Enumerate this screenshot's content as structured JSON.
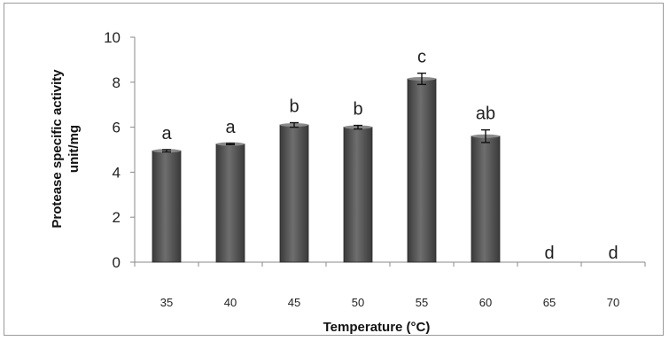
{
  "chart_data": {
    "type": "bar",
    "categories": [
      "35",
      "40",
      "45",
      "50",
      "55",
      "60",
      "65",
      "70"
    ],
    "values": [
      4.95,
      5.25,
      6.1,
      6.0,
      8.15,
      5.6,
      0,
      0
    ],
    "errors": [
      0.05,
      0.03,
      0.1,
      0.08,
      0.25,
      0.28,
      0,
      0
    ],
    "significance_letters": [
      "a",
      "a",
      "b",
      "b",
      "c",
      "ab",
      "d",
      "d"
    ],
    "title": "",
    "xlabel": "Temperature (°C)",
    "ylabel_line1": "Protease specific activity",
    "ylabel_line2": "unit/mg",
    "ylim": [
      0,
      10
    ],
    "yticks": [
      "0",
      "2",
      "4",
      "6",
      "8",
      "10"
    ],
    "grid": false,
    "legend": "none",
    "bar_color": "#555555"
  }
}
